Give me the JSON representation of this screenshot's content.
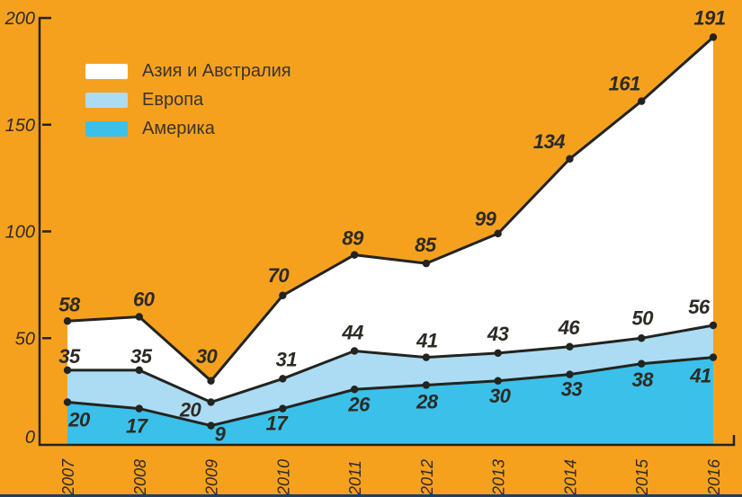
{
  "colors": {
    "background": "#F6A11E",
    "line": "#22241F",
    "value_label": "#2D2A24",
    "axis_label": "#2D2A24",
    "legend_text": "#3A342C",
    "bottom_rule": "#1F3E66"
  },
  "chart_data": {
    "type": "area",
    "stacked": true,
    "grid": false,
    "legend_position": "top-left",
    "x_labels": [
      "2007",
      "2008",
      "2009",
      "2010",
      "2011",
      "2012",
      "2013",
      "2014",
      "2015",
      "2016"
    ],
    "ylim": [
      0,
      200
    ],
    "yticks": [
      0,
      50,
      100,
      150,
      200
    ],
    "series": [
      {
        "name": "Азия и Австралия",
        "fill": "#FFFFFF",
        "line_values": [
          58,
          60,
          30,
          70,
          89,
          85,
          99,
          134,
          161,
          191
        ]
      },
      {
        "name": "Европа",
        "fill": "#ACDCF4",
        "line_values": [
          35,
          35,
          20,
          31,
          44,
          41,
          43,
          46,
          50,
          56
        ]
      },
      {
        "name": "Америка",
        "fill": "#3BC0EA",
        "line_values": [
          20,
          17,
          9,
          17,
          26,
          28,
          30,
          33,
          38,
          41
        ]
      }
    ]
  }
}
